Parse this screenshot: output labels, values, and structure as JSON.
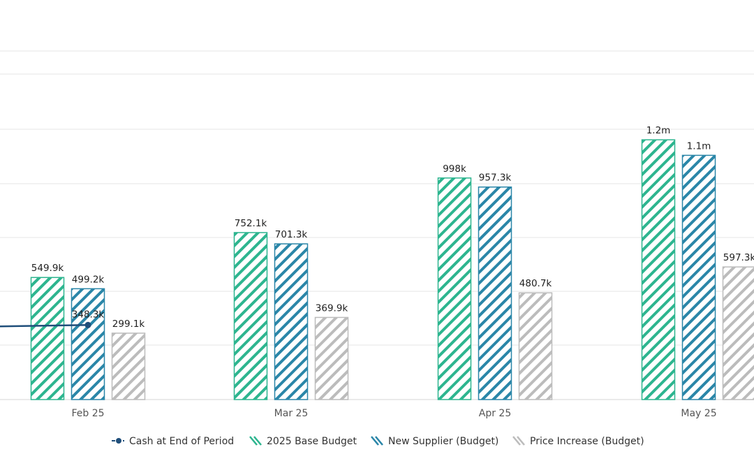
{
  "chart_data": {
    "type": "bar",
    "categories": [
      "Feb 25",
      "Mar 25",
      "Apr 25",
      "May 25"
    ],
    "series": [
      {
        "name": "2025 Base Budget",
        "values": [
          549900,
          752100,
          998000,
          1170000
        ],
        "labels": [
          "549.9k",
          "752.1k",
          "998k",
          "1.2m"
        ],
        "color": "#2db58f"
      },
      {
        "name": "New Supplier (Budget)",
        "values": [
          499200,
          701300,
          957300,
          1100000
        ],
        "labels": [
          "499.2k",
          "701.3k",
          "957.3k",
          "1.1m"
        ],
        "color": "#2a86a8"
      },
      {
        "name": "Price Increase (Budget)",
        "values": [
          299100,
          369900,
          480700,
          597300
        ],
        "labels": [
          "299.1k",
          "369.9k",
          "480.7k",
          "597.3k"
        ],
        "color": "#bcbcbc"
      }
    ],
    "line_series": {
      "name": "Cash at End of Period",
      "values": [
        348300
      ],
      "labels": [
        "348.3k"
      ],
      "color": "#1f4e7a"
    },
    "ylim": [
      0,
      1570000
    ],
    "grid": true,
    "legend_position": "bottom-center"
  }
}
